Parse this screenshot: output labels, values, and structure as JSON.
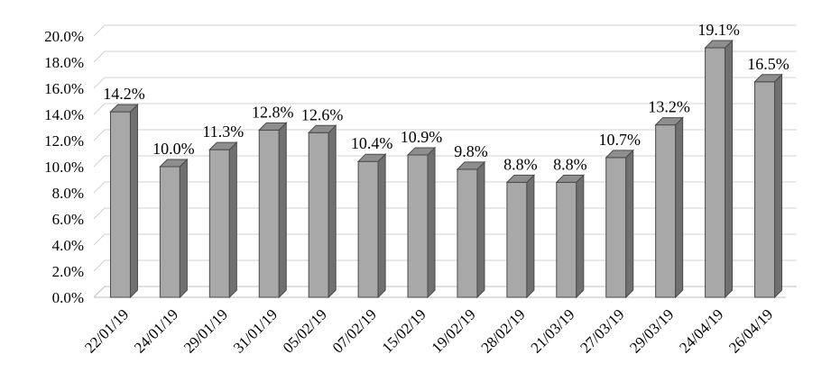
{
  "chart_data": {
    "type": "bar",
    "title": "",
    "xlabel": "",
    "ylabel": "",
    "ylim": [
      0,
      20
    ],
    "y_ticks": [
      "0.0%",
      "2.0%",
      "4.0%",
      "6.0%",
      "8.0%",
      "10.0%",
      "12.0%",
      "14.0%",
      "16.0%",
      "18.0%",
      "20.0%"
    ],
    "categories": [
      "22/01/19",
      "24/01/19",
      "29/01/19",
      "31/01/19",
      "05/02/19",
      "07/02/19",
      "15/02/19",
      "19/02/19",
      "28/02/19",
      "21/03/19",
      "27/03/19",
      "29/03/19",
      "24/04/19",
      "26/04/19"
    ],
    "values": [
      14.2,
      10.0,
      11.3,
      12.8,
      12.6,
      10.4,
      10.9,
      9.8,
      8.8,
      8.8,
      10.7,
      13.2,
      19.1,
      16.5
    ],
    "data_labels": [
      "14.2%",
      "10.0%",
      "11.3%",
      "12.8%",
      "12.6%",
      "10.4%",
      "10.9%",
      "9.8%",
      "8.8%",
      "8.8%",
      "10.7%",
      "13.2%",
      "19.1%",
      "16.5%"
    ],
    "grid": true,
    "legend": "none",
    "colors": {
      "bar_front": "#a8a8a8",
      "bar_side": "#707070",
      "bar_top": "#8e8e8e",
      "bar_stroke": "#4a4a4a",
      "grid": "#d0d0d0",
      "floor": "#bfbfbf"
    }
  }
}
